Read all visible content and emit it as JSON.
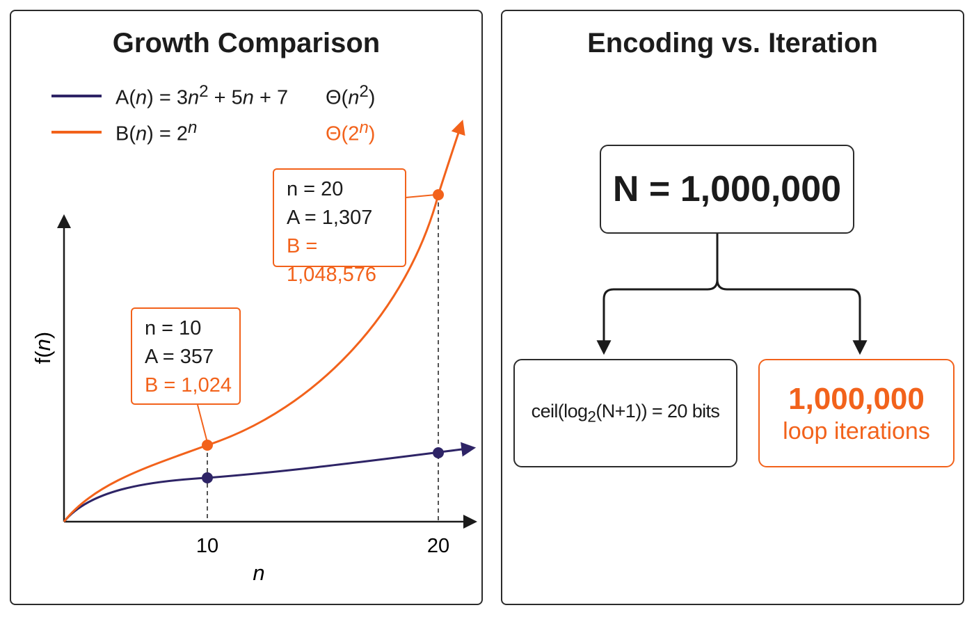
{
  "left_panel": {
    "title": "Growth Comparison",
    "legend": [
      {
        "label_html": "A(<i>n</i>) = 3<i>n</i><sup>2</sup> + 5<i>n</i> + 7",
        "order_html": "Θ(<i>n</i><sup>2</sup>)",
        "color": "#2e2466"
      },
      {
        "label_html": "B(<i>n</i>) = 2<sup><i>n</i></sup>",
        "order_html": "Θ(2<sup><i>n</i></sup>)",
        "color": "#f2621b"
      }
    ],
    "callouts": [
      {
        "n": "n = 10",
        "a": "A = 357",
        "b": "B = 1,024"
      },
      {
        "n": "n = 20",
        "a": "A = 1,307",
        "b": "B = 1,048,576"
      }
    ]
  },
  "right_panel": {
    "title": "Encoding vs. Iteration",
    "root": "N = 1,000,000",
    "left_child_html": "ceil(log<sub>2</sub>(N+1)) = 20 bits",
    "right_child": {
      "value": "1,000,000",
      "label": "loop iterations"
    }
  },
  "chart_data": {
    "type": "line",
    "xlabel": "n",
    "ylabel": "f(n)",
    "x_ticks": [
      10,
      20
    ],
    "series": [
      {
        "name": "A(n) = 3n² + 5n + 7",
        "color": "#2e2466",
        "points": [
          [
            10,
            357
          ],
          [
            20,
            1307
          ]
        ]
      },
      {
        "name": "B(n) = 2ⁿ",
        "color": "#f2621b",
        "points": [
          [
            10,
            1024
          ],
          [
            20,
            1048576
          ]
        ]
      }
    ]
  }
}
